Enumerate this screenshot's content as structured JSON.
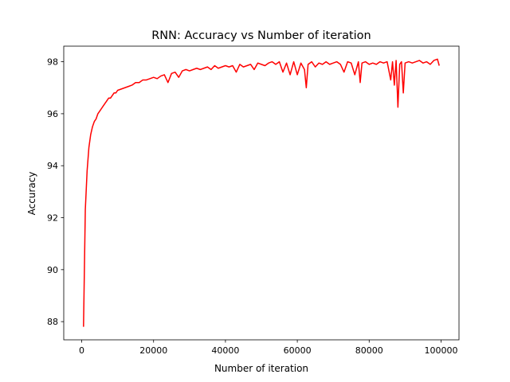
{
  "chart_data": {
    "type": "line",
    "title": "RNN: Accuracy vs Number of iteration",
    "xlabel": "Number of iteration",
    "ylabel": "Accuracy",
    "xlim": [
      -5000,
      105000
    ],
    "ylim": [
      87.3,
      98.6
    ],
    "xticks": [
      0,
      20000,
      40000,
      60000,
      80000,
      100000
    ],
    "xtick_labels": [
      "0",
      "20000",
      "40000",
      "60000",
      "80000",
      "100000"
    ],
    "yticks": [
      88,
      90,
      92,
      94,
      96,
      98
    ],
    "ytick_labels": [
      "88",
      "90",
      "92",
      "94",
      96,
      "98"
    ],
    "grid": false,
    "series": [
      {
        "color": "#ff0000",
        "x": [
          500,
          1000,
          1500,
          2000,
          2500,
          3000,
          3500,
          4000,
          4500,
          5000,
          5500,
          6000,
          6500,
          7000,
          7500,
          8000,
          8500,
          9000,
          9500,
          10000,
          11000,
          12000,
          13000,
          14000,
          15000,
          16000,
          17000,
          18000,
          19000,
          20000,
          21000,
          22000,
          23000,
          24000,
          25000,
          26000,
          27000,
          28000,
          29000,
          30000,
          31000,
          32000,
          33000,
          34000,
          35000,
          36000,
          37000,
          38000,
          39000,
          40000,
          41000,
          42000,
          43000,
          44000,
          45000,
          46000,
          47000,
          48000,
          49000,
          50000,
          51000,
          52000,
          53000,
          54000,
          55000,
          56000,
          57000,
          58000,
          59000,
          60000,
          61000,
          62000,
          62500,
          63000,
          64000,
          65000,
          66000,
          67000,
          68000,
          69000,
          70000,
          71000,
          72000,
          73000,
          74000,
          75000,
          76000,
          77000,
          77500,
          78000,
          79000,
          80000,
          81000,
          82000,
          83000,
          84000,
          85000,
          86000,
          86500,
          87000,
          87500,
          88000,
          88500,
          89000,
          89500,
          90000,
          91000,
          92000,
          93000,
          94000,
          95000,
          96000,
          97000,
          98000,
          99000,
          99500
        ],
        "y": [
          87.8,
          92.3,
          93.8,
          94.7,
          95.2,
          95.5,
          95.7,
          95.8,
          96.0,
          96.1,
          96.2,
          96.3,
          96.4,
          96.5,
          96.6,
          96.6,
          96.7,
          96.8,
          96.8,
          96.9,
          96.95,
          97.0,
          97.05,
          97.1,
          97.2,
          97.2,
          97.3,
          97.3,
          97.35,
          97.4,
          97.35,
          97.45,
          97.5,
          97.2,
          97.55,
          97.6,
          97.4,
          97.65,
          97.7,
          97.65,
          97.7,
          97.75,
          97.7,
          97.75,
          97.8,
          97.7,
          97.85,
          97.75,
          97.8,
          97.85,
          97.8,
          97.85,
          97.6,
          97.9,
          97.8,
          97.85,
          97.9,
          97.7,
          97.95,
          97.9,
          97.85,
          97.95,
          98.0,
          97.9,
          98.0,
          97.6,
          97.95,
          97.5,
          98.0,
          97.5,
          97.95,
          97.7,
          97.0,
          97.9,
          98.0,
          97.8,
          97.95,
          97.9,
          98.0,
          97.9,
          97.95,
          98.0,
          97.9,
          97.6,
          98.0,
          97.95,
          97.5,
          98.0,
          97.2,
          97.95,
          98.0,
          97.9,
          97.95,
          97.9,
          98.0,
          97.95,
          98.0,
          97.3,
          98.0,
          97.1,
          98.05,
          96.25,
          97.9,
          98.0,
          96.8,
          97.95,
          98.0,
          97.95,
          98.0,
          98.05,
          97.95,
          98.0,
          97.9,
          98.05,
          98.1,
          97.85
        ]
      }
    ]
  }
}
